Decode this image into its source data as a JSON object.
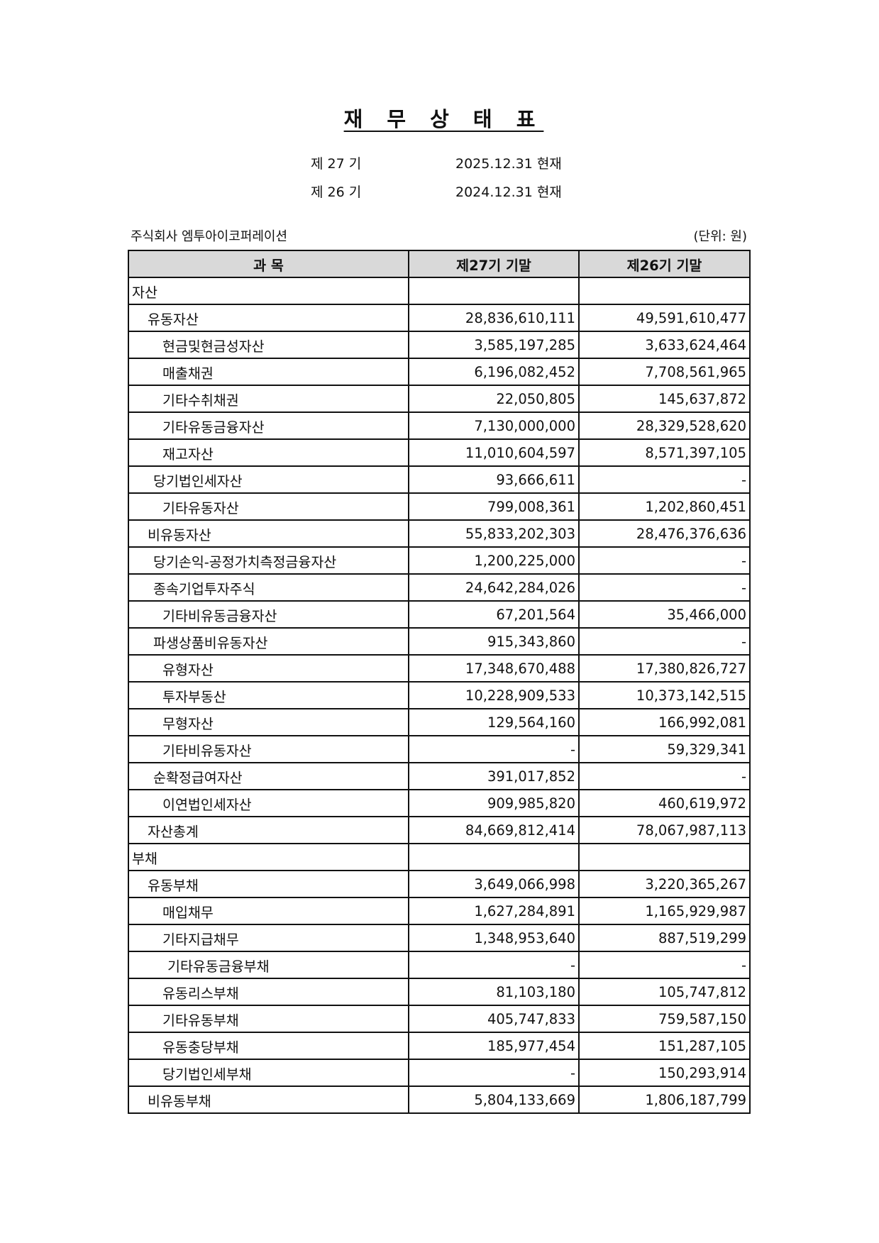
{
  "title": "재 무 상 태 표",
  "periods": [
    {
      "term": "제 27 기",
      "date": "2025.12.31 현재"
    },
    {
      "term": "제 26 기",
      "date": "2024.12.31 현재"
    }
  ],
  "company": "주식회사 엠투아이코퍼레이션",
  "unit": "(단위: 원)",
  "table": {
    "headers": [
      "과 목",
      "제27기 기말",
      "제26기 기말"
    ],
    "rows": [
      {
        "label": "자산",
        "level": 0,
        "cur": "",
        "prev": ""
      },
      {
        "label": "유동자산",
        "level": 1,
        "cur": "28,836,610,111",
        "prev": "49,591,610,477"
      },
      {
        "label": "현금및현금성자산",
        "level": 3,
        "cur": "3,585,197,285",
        "prev": "3,633,624,464"
      },
      {
        "label": "매출채권",
        "level": 3,
        "cur": "6,196,082,452",
        "prev": "7,708,561,965"
      },
      {
        "label": "기타수취채권",
        "level": 3,
        "cur": "22,050,805",
        "prev": "145,637,872"
      },
      {
        "label": "기타유동금융자산",
        "level": 3,
        "cur": "7,130,000,000",
        "prev": "28,329,528,620"
      },
      {
        "label": "재고자산",
        "level": 3,
        "cur": "11,010,604,597",
        "prev": "8,571,397,105"
      },
      {
        "label": "당기법인세자산",
        "level": 2,
        "cur": "93,666,611",
        "prev": "-"
      },
      {
        "label": "기타유동자산",
        "level": 3,
        "cur": "799,008,361",
        "prev": "1,202,860,451"
      },
      {
        "label": "비유동자산",
        "level": 1,
        "cur": "55,833,202,303",
        "prev": "28,476,376,636"
      },
      {
        "label": "당기손익-공정가치측정금융자산",
        "level": 2,
        "cur": "1,200,225,000",
        "prev": "-"
      },
      {
        "label": "종속기업투자주식",
        "level": 2,
        "cur": "24,642,284,026",
        "prev": "-"
      },
      {
        "label": "기타비유동금융자산",
        "level": 3,
        "cur": "67,201,564",
        "prev": "35,466,000"
      },
      {
        "label": "파생상품비유동자산",
        "level": 2,
        "cur": "915,343,860",
        "prev": "-"
      },
      {
        "label": "유형자산",
        "level": 3,
        "cur": "17,348,670,488",
        "prev": "17,380,826,727"
      },
      {
        "label": "투자부동산",
        "level": 3,
        "cur": "10,228,909,533",
        "prev": "10,373,142,515"
      },
      {
        "label": "무형자산",
        "level": 3,
        "cur": "129,564,160",
        "prev": "166,992,081"
      },
      {
        "label": "기타비유동자산",
        "level": 3,
        "cur": "-",
        "prev": "59,329,341"
      },
      {
        "label": "순확정급여자산",
        "level": 2,
        "cur": "391,017,852",
        "prev": "-"
      },
      {
        "label": "이연법인세자산",
        "level": 3,
        "cur": "909,985,820",
        "prev": "460,619,972"
      },
      {
        "label": "자산총계",
        "level": 1,
        "cur": "84,669,812,414",
        "prev": "78,067,987,113"
      },
      {
        "label": "부채",
        "level": 0,
        "cur": "",
        "prev": ""
      },
      {
        "label": "유동부채",
        "level": 1,
        "cur": "3,649,066,998",
        "prev": "3,220,365,267"
      },
      {
        "label": "매입채무",
        "level": 3,
        "cur": "1,627,284,891",
        "prev": "1,165,929,987"
      },
      {
        "label": "기타지급채무",
        "level": 3,
        "cur": "1,348,953,640",
        "prev": "887,519,299"
      },
      {
        "label": "기타유동금융부채",
        "level": 4,
        "cur": "-",
        "prev": "-"
      },
      {
        "label": "유동리스부채",
        "level": 3,
        "cur": "81,103,180",
        "prev": "105,747,812"
      },
      {
        "label": "기타유동부채",
        "level": 3,
        "cur": "405,747,833",
        "prev": "759,587,150"
      },
      {
        "label": "유동충당부채",
        "level": 3,
        "cur": "185,977,454",
        "prev": "151,287,105"
      },
      {
        "label": "당기법인세부채",
        "level": 3,
        "cur": "-",
        "prev": "150,293,914"
      },
      {
        "label": "비유동부채",
        "level": 1,
        "cur": "5,804,133,669",
        "prev": "1,806,187,799"
      }
    ]
  }
}
